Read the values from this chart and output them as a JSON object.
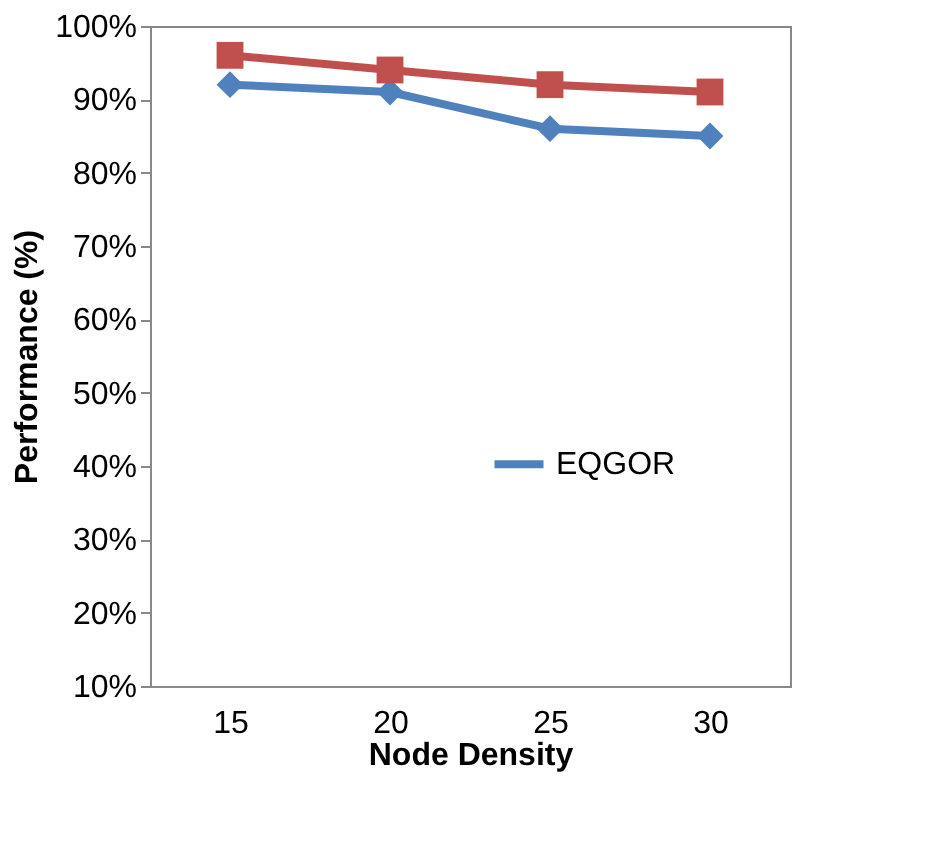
{
  "chart_data": {
    "type": "line",
    "xlabel": "Node Density",
    "ylabel": "Performance (%)",
    "categories": [
      "15",
      "20",
      "25",
      "30"
    ],
    "series": [
      {
        "name": "EQGOR",
        "color": "#4f81bd",
        "values": [
          92,
          91,
          86,
          85
        ],
        "marker": "diamond"
      },
      {
        "color": "#c0504d",
        "values": [
          96,
          94,
          92,
          91
        ],
        "marker": "square"
      }
    ],
    "ylim": [
      10,
      100
    ],
    "yticks": [
      {
        "value": 10,
        "label": "10%"
      },
      {
        "value": 20,
        "label": "20%"
      },
      {
        "value": 30,
        "label": "30%"
      },
      {
        "value": 40,
        "label": "40%"
      },
      {
        "value": 50,
        "label": "50%"
      },
      {
        "value": 60,
        "label": "60%"
      },
      {
        "value": 70,
        "label": "70%"
      },
      {
        "value": 80,
        "label": "80%"
      },
      {
        "value": 90,
        "label": "90%"
      },
      {
        "value": 100,
        "label": "100%"
      }
    ],
    "legend": "right",
    "grid": false
  }
}
